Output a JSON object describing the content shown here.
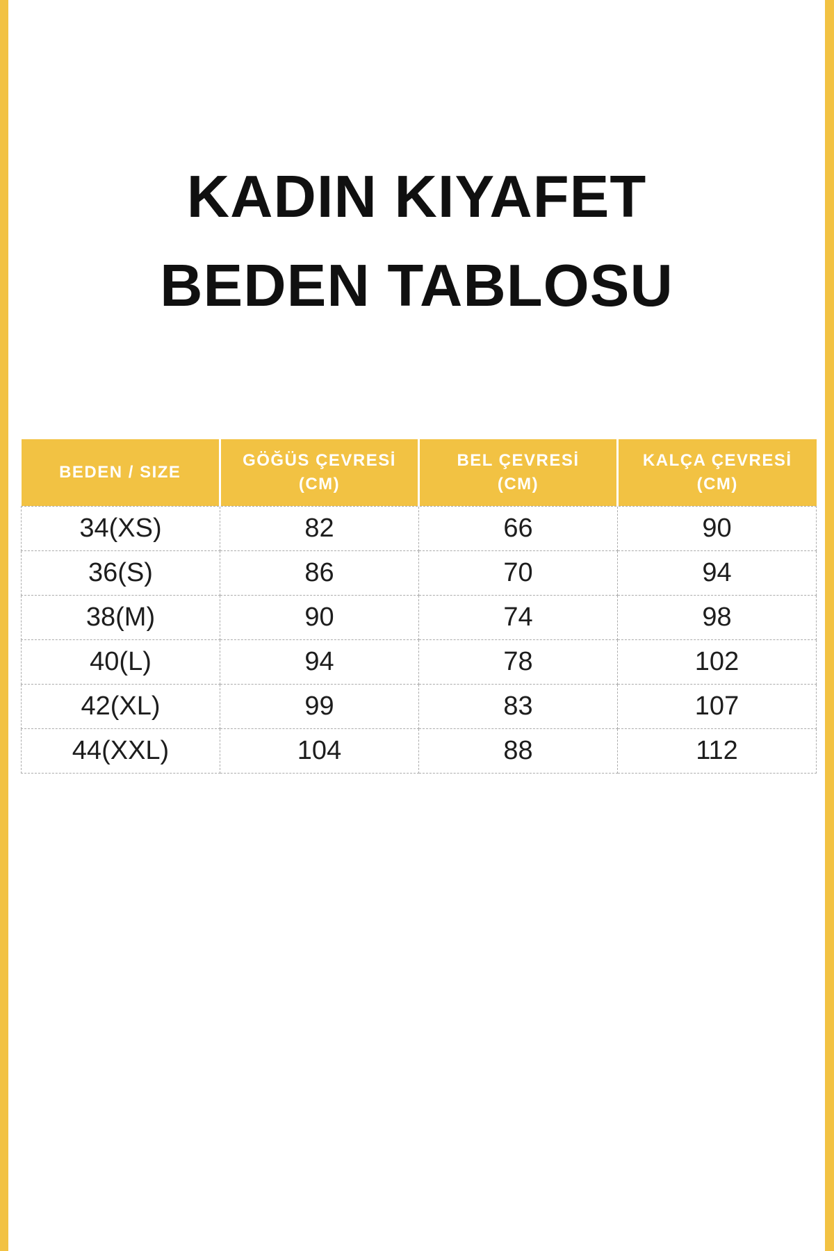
{
  "page": {
    "background": "#ffffff",
    "accent_color": "#F2C243",
    "border_color": "#ababab"
  },
  "title": {
    "line1": "KADIN KIYAFET",
    "line2": "BEDEN TABLOSU"
  },
  "table": {
    "columns": [
      {
        "lines": [
          "BEDEN / SIZE"
        ]
      },
      {
        "lines": [
          "GÖĞÜS ÇEVRESİ",
          "(CM)"
        ]
      },
      {
        "lines": [
          "BEL ÇEVRESİ",
          "(CM)"
        ]
      },
      {
        "lines": [
          "KALÇA ÇEVRESİ",
          "(CM)"
        ]
      }
    ],
    "rows": [
      [
        "34(XS)",
        "82",
        "66",
        "90"
      ],
      [
        "36(S)",
        "86",
        "70",
        "94"
      ],
      [
        "38(M)",
        "90",
        "74",
        "98"
      ],
      [
        "40(L)",
        "94",
        "78",
        "102"
      ],
      [
        "42(XL)",
        "99",
        "83",
        "107"
      ],
      [
        "44(XXL)",
        "104",
        "88",
        "112"
      ]
    ]
  }
}
